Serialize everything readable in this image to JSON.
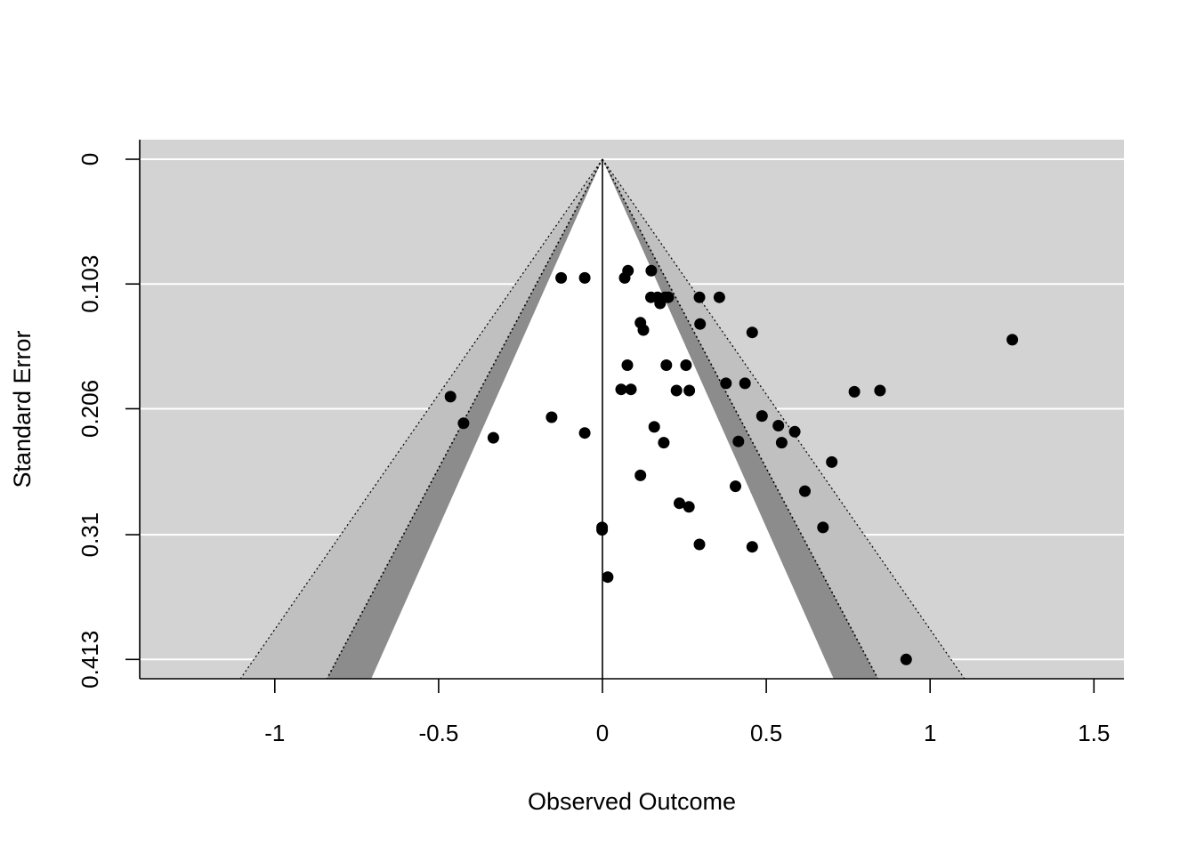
{
  "chart_data": {
    "type": "scatter",
    "title": "",
    "xlabel": "Observed Outcome",
    "ylabel": "Standard Error",
    "xlim": [
      -1.41,
      1.59
    ],
    "ylim": [
      0,
      0.43
    ],
    "y_reversed": true,
    "x_ticks": [
      {
        "value": -1,
        "label": "-1"
      },
      {
        "value": -0.5,
        "label": "-0.5"
      },
      {
        "value": 0,
        "label": "0"
      },
      {
        "value": 0.5,
        "label": "0.5"
      },
      {
        "value": 1,
        "label": "1"
      },
      {
        "value": 1.5,
        "label": "1.5"
      }
    ],
    "y_ticks": [
      {
        "value": 0,
        "label": "0"
      },
      {
        "value": 0.103,
        "label": "0.103"
      },
      {
        "value": 0.206,
        "label": "0.206"
      },
      {
        "value": 0.31,
        "label": "0.31"
      },
      {
        "value": 0.413,
        "label": "0.413"
      }
    ],
    "grid": "horizontal",
    "contour_center": 0,
    "contour_levels": [
      {
        "z": 1.645,
        "color": "#ffffff"
      },
      {
        "z": 1.96,
        "color": "#8c8c8c"
      },
      {
        "z": 2.576,
        "color": "#c0c0c0"
      }
    ],
    "outer_color": "#d3d3d3",
    "points": [
      {
        "x": -0.126,
        "y": 0.098
      },
      {
        "x": -0.054,
        "y": 0.098
      },
      {
        "x": 0.068,
        "y": 0.098
      },
      {
        "x": 0.078,
        "y": 0.092
      },
      {
        "x": 0.149,
        "y": 0.092
      },
      {
        "x": 0.148,
        "y": 0.114
      },
      {
        "x": 0.168,
        "y": 0.114
      },
      {
        "x": 0.191,
        "y": 0.114
      },
      {
        "x": 0.201,
        "y": 0.114
      },
      {
        "x": 0.176,
        "y": 0.119
      },
      {
        "x": 0.296,
        "y": 0.114
      },
      {
        "x": 0.357,
        "y": 0.114
      },
      {
        "x": 0.116,
        "y": 0.135
      },
      {
        "x": 0.125,
        "y": 0.141
      },
      {
        "x": 0.298,
        "y": 0.136
      },
      {
        "x": 0.457,
        "y": 0.143
      },
      {
        "x": 1.251,
        "y": 0.149
      },
      {
        "x": 0.076,
        "y": 0.17
      },
      {
        "x": 0.195,
        "y": 0.17
      },
      {
        "x": 0.255,
        "y": 0.17
      },
      {
        "x": 0.057,
        "y": 0.19
      },
      {
        "x": 0.087,
        "y": 0.19
      },
      {
        "x": 0.226,
        "y": 0.191
      },
      {
        "x": 0.265,
        "y": 0.191
      },
      {
        "x": 0.377,
        "y": 0.185
      },
      {
        "x": 0.435,
        "y": 0.185
      },
      {
        "x": 0.769,
        "y": 0.192
      },
      {
        "x": 0.847,
        "y": 0.191
      },
      {
        "x": -0.464,
        "y": 0.196
      },
      {
        "x": -0.424,
        "y": 0.218
      },
      {
        "x": -0.333,
        "y": 0.23
      },
      {
        "x": -0.155,
        "y": 0.213
      },
      {
        "x": -0.054,
        "y": 0.226
      },
      {
        "x": 0.158,
        "y": 0.221
      },
      {
        "x": 0.187,
        "y": 0.234
      },
      {
        "x": 0.487,
        "y": 0.212
      },
      {
        "x": 0.537,
        "y": 0.22
      },
      {
        "x": 0.587,
        "y": 0.225
      },
      {
        "x": 0.415,
        "y": 0.233
      },
      {
        "x": 0.547,
        "y": 0.234
      },
      {
        "x": 0.7,
        "y": 0.25
      },
      {
        "x": 0.116,
        "y": 0.261
      },
      {
        "x": 0.406,
        "y": 0.27
      },
      {
        "x": 0.618,
        "y": 0.274
      },
      {
        "x": 0.235,
        "y": 0.284
      },
      {
        "x": 0.264,
        "y": 0.287
      },
      {
        "x": 0.673,
        "y": 0.304
      },
      {
        "x": -0.001,
        "y": 0.304
      },
      {
        "x": -0.001,
        "y": 0.306
      },
      {
        "x": 0.296,
        "y": 0.318
      },
      {
        "x": 0.457,
        "y": 0.32
      },
      {
        "x": 0.016,
        "y": 0.345
      },
      {
        "x": 0.927,
        "y": 0.413
      }
    ]
  }
}
